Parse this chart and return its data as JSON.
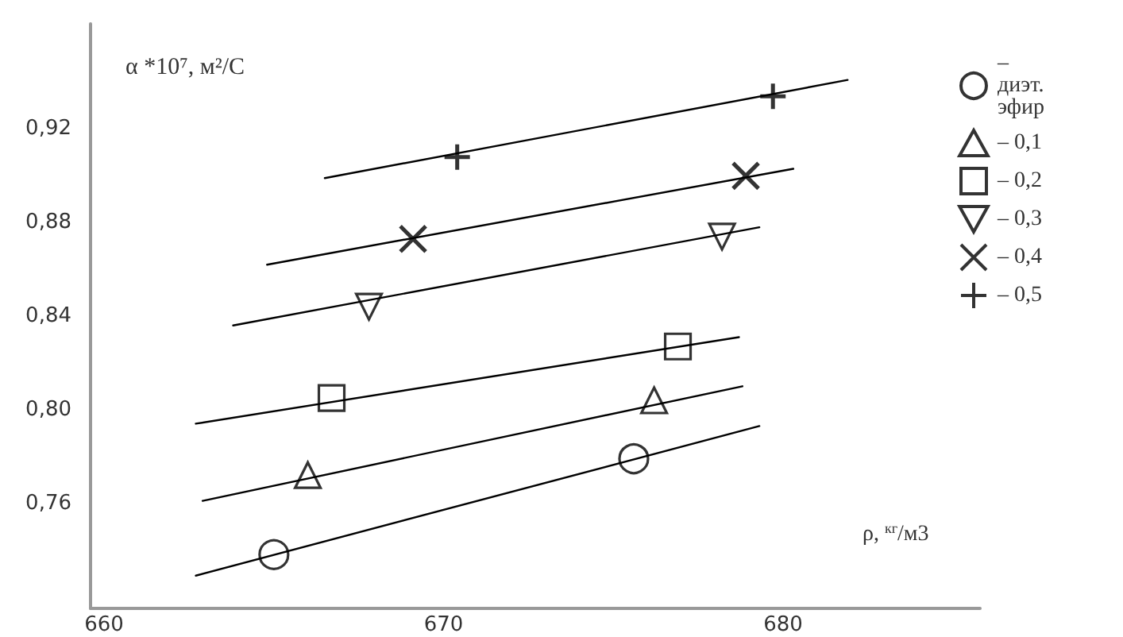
{
  "chart_data": {
    "type": "scatter",
    "ylabel": "α *10⁷, м²/С",
    "xlabel": "ρ, $^{кг}$/м3",
    "xlim": [
      659.6,
      685.8
    ],
    "xticks": [
      660,
      670,
      680
    ],
    "ylim": [
      0.715,
      0.965
    ],
    "yticks": [
      {
        "value": 0.76,
        "label": "0,76"
      },
      {
        "value": 0.8,
        "label": "0,80"
      },
      {
        "value": 0.84,
        "label": "0,84"
      },
      {
        "value": 0.88,
        "label": "0,88"
      },
      {
        "value": 0.92,
        "label": "0,92"
      }
    ],
    "grid": false,
    "legend": "right",
    "series": [
      {
        "name": "– диэт. эфир",
        "marker": "circle",
        "color": "#000000",
        "x": [
          665.0,
          675.6
        ],
        "values": [
          0.738,
          0.779
        ]
      },
      {
        "name": "– 0,1",
        "marker": "triangle",
        "color": "#000000",
        "x": [
          666.0,
          676.2
        ],
        "values": [
          0.772,
          0.804
        ]
      },
      {
        "name": "– 0,2",
        "marker": "square",
        "color": "#000000",
        "x": [
          666.7,
          676.9
        ],
        "values": [
          0.805,
          0.827
        ]
      },
      {
        "name": "– 0,3",
        "marker": "triangle-down",
        "color": "#000000",
        "x": [
          667.8,
          678.2
        ],
        "values": [
          0.844,
          0.874
        ]
      },
      {
        "name": "– 0,4",
        "marker": "x",
        "color": "#000000",
        "x": [
          669.1,
          678.9
        ],
        "values": [
          0.873,
          0.9
        ]
      },
      {
        "name": "– 0,5",
        "marker": "plus",
        "color": "#000000",
        "x": [
          670.4,
          679.7
        ],
        "values": [
          0.908,
          0.934
        ]
      },
      {
        "type": "line",
        "marker": "none",
        "line_style": "solid",
        "color": "#000000",
        "x": [
          662.7,
          679.3
        ],
        "values": [
          0.729,
          0.793
        ]
      },
      {
        "type": "line",
        "marker": "none",
        "line_style": "solid",
        "color": "#000000",
        "x": [
          662.9,
          678.8
        ],
        "values": [
          0.761,
          0.81
        ]
      },
      {
        "type": "line",
        "marker": "none",
        "line_style": "solid",
        "color": "#000000",
        "x": [
          662.7,
          678.7
        ],
        "values": [
          0.794,
          0.831
        ]
      },
      {
        "type": "line",
        "marker": "none",
        "line_style": "solid",
        "color": "#000000",
        "x": [
          663.8,
          679.3
        ],
        "values": [
          0.836,
          0.878
        ]
      },
      {
        "type": "line",
        "marker": "none",
        "line_style": "solid",
        "color": "#000000",
        "x": [
          664.8,
          680.3
        ],
        "values": [
          0.862,
          0.903
        ]
      },
      {
        "type": "line",
        "marker": "none",
        "line_style": "solid",
        "color": "#000000",
        "x": [
          666.5,
          681.9
        ],
        "values": [
          0.899,
          0.941
        ]
      }
    ]
  }
}
